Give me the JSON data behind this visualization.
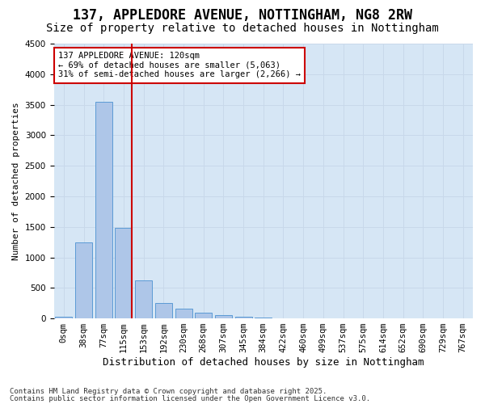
{
  "title1": "137, APPLEDORE AVENUE, NOTTINGHAM, NG8 2RW",
  "title2": "Size of property relative to detached houses in Nottingham",
  "xlabel": "Distribution of detached houses by size in Nottingham",
  "ylabel": "Number of detached properties",
  "bin_labels": [
    "0sqm",
    "38sqm",
    "77sqm",
    "115sqm",
    "153sqm",
    "192sqm",
    "230sqm",
    "268sqm",
    "307sqm",
    "345sqm",
    "384sqm",
    "422sqm",
    "460sqm",
    "499sqm",
    "537sqm",
    "575sqm",
    "614sqm",
    "652sqm",
    "690sqm",
    "729sqm",
    "767sqm"
  ],
  "bar_values": [
    30,
    1250,
    3550,
    1480,
    620,
    250,
    160,
    100,
    50,
    30,
    15,
    5,
    3,
    2,
    1,
    0,
    2,
    0,
    0,
    0,
    0
  ],
  "bar_color": "#aec6e8",
  "bar_edgecolor": "#5b9bd5",
  "grid_color": "#c8d8ea",
  "bg_color": "#d6e6f5",
  "vline_x_index": 3,
  "vline_color": "#cc0000",
  "annotation_text": "137 APPLEDORE AVENUE: 120sqm\n← 69% of detached houses are smaller (5,063)\n31% of semi-detached houses are larger (2,266) →",
  "annotation_box_color": "#cc0000",
  "ylim": [
    0,
    4500
  ],
  "yticks": [
    0,
    500,
    1000,
    1500,
    2000,
    2500,
    3000,
    3500,
    4000,
    4500
  ],
  "footer1": "Contains HM Land Registry data © Crown copyright and database right 2025.",
  "footer2": "Contains public sector information licensed under the Open Government Licence v3.0.",
  "title1_fontsize": 12,
  "title2_fontsize": 10,
  "xlabel_fontsize": 9,
  "ylabel_fontsize": 8,
  "tick_fontsize": 7.5,
  "annotation_fontsize": 7.5,
  "footer_fontsize": 6.5
}
